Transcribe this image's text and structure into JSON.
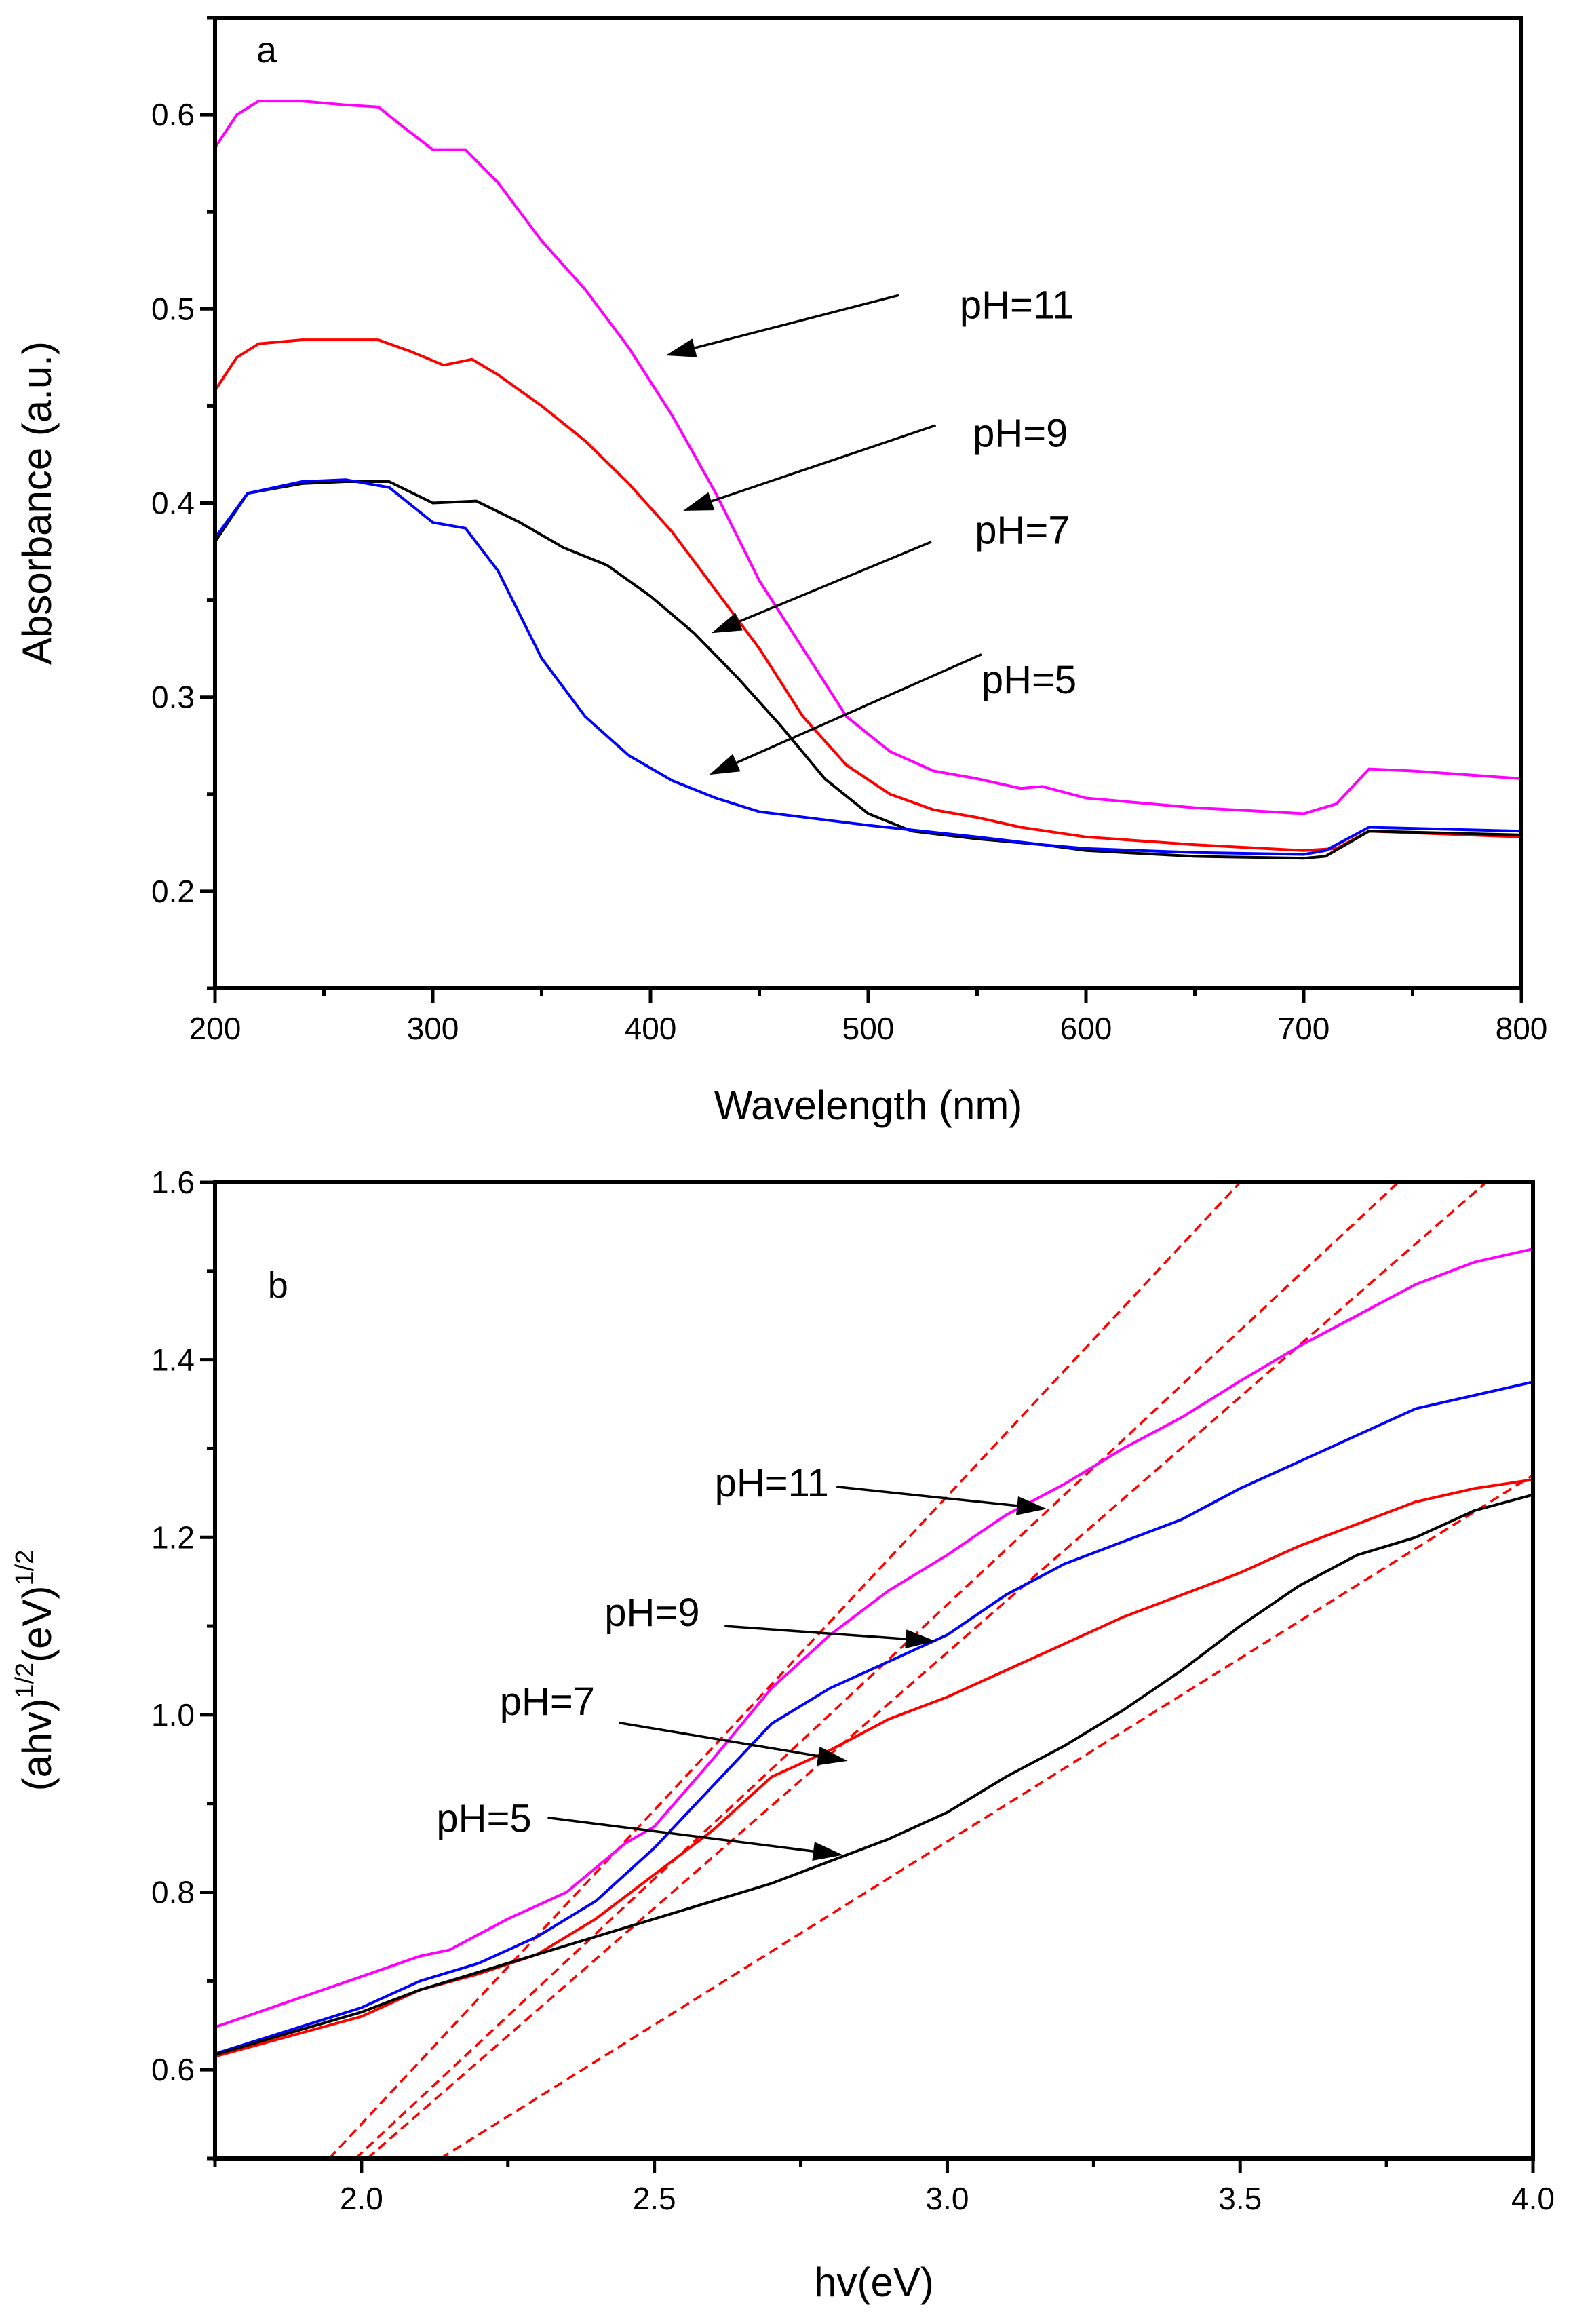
{
  "chart_data": [
    {
      "type": "line",
      "panel_label": "a",
      "xlabel": "Wavelength (nm)",
      "ylabel": "Absorbance (a.u.)",
      "xlim": [
        200,
        800
      ],
      "ylim": [
        0.15,
        0.65
      ],
      "xticks": [
        200,
        300,
        400,
        500,
        600,
        700,
        800
      ],
      "xtick_labels": [
        "200",
        "300",
        "400",
        "500",
        "600",
        "700",
        "800"
      ],
      "xminor_step": 50,
      "yticks": [
        0.2,
        0.3,
        0.4,
        0.5,
        0.6
      ],
      "ytick_labels": [
        "0.2",
        "0.3",
        "0.4",
        "0.5",
        "0.6"
      ],
      "yminor_step": 0.05,
      "series": [
        {
          "name": "pH=11",
          "color": "#ff00ff",
          "points": [
            [
              200,
              0.583
            ],
            [
              210,
              0.6
            ],
            [
              220,
              0.607
            ],
            [
              240,
              0.607
            ],
            [
              260,
              0.605
            ],
            [
              275,
              0.604
            ],
            [
              285,
              0.595
            ],
            [
              300,
              0.582
            ],
            [
              315,
              0.582
            ],
            [
              330,
              0.565
            ],
            [
              350,
              0.535
            ],
            [
              370,
              0.51
            ],
            [
              390,
              0.48
            ],
            [
              410,
              0.445
            ],
            [
              430,
              0.405
            ],
            [
              450,
              0.36
            ],
            [
              470,
              0.325
            ],
            [
              490,
              0.29
            ],
            [
              510,
              0.272
            ],
            [
              530,
              0.262
            ],
            [
              550,
              0.258
            ],
            [
              570,
              0.253
            ],
            [
              580,
              0.254
            ],
            [
              600,
              0.248
            ],
            [
              650,
              0.243
            ],
            [
              700,
              0.24
            ],
            [
              715,
              0.245
            ],
            [
              730,
              0.263
            ],
            [
              750,
              0.262
            ],
            [
              800,
              0.258
            ]
          ]
        },
        {
          "name": "pH=9",
          "color": "#ff0000",
          "points": [
            [
              200,
              0.458
            ],
            [
              210,
              0.475
            ],
            [
              220,
              0.482
            ],
            [
              240,
              0.484
            ],
            [
              275,
              0.484
            ],
            [
              290,
              0.478
            ],
            [
              305,
              0.471
            ],
            [
              318,
              0.474
            ],
            [
              330,
              0.466
            ],
            [
              350,
              0.45
            ],
            [
              370,
              0.432
            ],
            [
              390,
              0.41
            ],
            [
              410,
              0.385
            ],
            [
              430,
              0.355
            ],
            [
              450,
              0.325
            ],
            [
              470,
              0.29
            ],
            [
              490,
              0.265
            ],
            [
              510,
              0.25
            ],
            [
              530,
              0.242
            ],
            [
              550,
              0.238
            ],
            [
              570,
              0.233
            ],
            [
              600,
              0.228
            ],
            [
              650,
              0.224
            ],
            [
              700,
              0.221
            ],
            [
              715,
              0.222
            ],
            [
              730,
              0.231
            ],
            [
              800,
              0.228
            ]
          ]
        },
        {
          "name": "pH=7",
          "color": "#000000",
          "points": [
            [
              200,
              0.38
            ],
            [
              215,
              0.405
            ],
            [
              240,
              0.41
            ],
            [
              260,
              0.411
            ],
            [
              280,
              0.411
            ],
            [
              300,
              0.4
            ],
            [
              320,
              0.401
            ],
            [
              340,
              0.39
            ],
            [
              360,
              0.377
            ],
            [
              380,
              0.368
            ],
            [
              400,
              0.352
            ],
            [
              420,
              0.333
            ],
            [
              440,
              0.31
            ],
            [
              460,
              0.285
            ],
            [
              480,
              0.258
            ],
            [
              500,
              0.24
            ],
            [
              520,
              0.231
            ],
            [
              550,
              0.227
            ],
            [
              580,
              0.224
            ],
            [
              600,
              0.221
            ],
            [
              650,
              0.218
            ],
            [
              700,
              0.217
            ],
            [
              710,
              0.218
            ],
            [
              730,
              0.231
            ],
            [
              800,
              0.229
            ]
          ]
        },
        {
          "name": "pH=5",
          "color": "#0000ff",
          "points": [
            [
              200,
              0.382
            ],
            [
              215,
              0.405
            ],
            [
              240,
              0.411
            ],
            [
              260,
              0.412
            ],
            [
              280,
              0.408
            ],
            [
              300,
              0.39
            ],
            [
              315,
              0.387
            ],
            [
              330,
              0.365
            ],
            [
              350,
              0.32
            ],
            [
              370,
              0.29
            ],
            [
              390,
              0.27
            ],
            [
              410,
              0.257
            ],
            [
              430,
              0.248
            ],
            [
              450,
              0.241
            ],
            [
              500,
              0.234
            ],
            [
              550,
              0.228
            ],
            [
              580,
              0.224
            ],
            [
              600,
              0.222
            ],
            [
              650,
              0.22
            ],
            [
              700,
              0.219
            ],
            [
              710,
              0.221
            ],
            [
              730,
              0.233
            ],
            [
              800,
              0.231
            ]
          ]
        }
      ],
      "annotations": [
        {
          "text": "pH=11",
          "at": [
            542,
            0.495
          ],
          "arrow_from": [
            514,
            0.507
          ],
          "arrow_to": [
            407,
            0.476
          ]
        },
        {
          "text": "pH=9",
          "at": [
            548,
            0.429
          ],
          "arrow_from": [
            531,
            0.44
          ],
          "arrow_to": [
            415,
            0.396
          ]
        },
        {
          "text": "pH=7",
          "at": [
            549,
            0.379
          ],
          "arrow_from": [
            529,
            0.38
          ],
          "arrow_to": [
            428,
            0.333
          ]
        },
        {
          "text": "pH=5",
          "at": [
            552,
            0.302
          ],
          "arrow_from": [
            552,
            0.322
          ],
          "arrow_to": [
            427,
            0.26
          ]
        }
      ],
      "panel_label_at": [
        219,
        0.627
      ]
    },
    {
      "type": "line",
      "panel_label": "b",
      "xlabel": "hv(eV)",
      "ylabel_parts": [
        "(ahv)",
        "1/2",
        "(eV)",
        "1/2"
      ],
      "xlim": [
        1.75,
        4.0
      ],
      "ylim": [
        0.5,
        1.6
      ],
      "xticks": [
        2.0,
        2.5,
        3.0,
        3.5,
        4.0
      ],
      "xtick_labels": [
        "2.0",
        "2.5",
        "3.0",
        "3.5",
        "4.0"
      ],
      "xminor_step": 0.25,
      "yticks": [
        0.6,
        0.8,
        1.0,
        1.2,
        1.4,
        1.6
      ],
      "ytick_labels": [
        "0.6",
        "0.8",
        "1.0",
        "1.2",
        "1.4",
        "1.6"
      ],
      "yminor_step": 0.1,
      "series": [
        {
          "name": "pH=11",
          "color": "#ff00ff",
          "points": [
            [
              1.75,
              0.648
            ],
            [
              2.0,
              0.705
            ],
            [
              2.1,
              0.728
            ],
            [
              2.15,
              0.735
            ],
            [
              2.25,
              0.77
            ],
            [
              2.35,
              0.8
            ],
            [
              2.45,
              0.855
            ],
            [
              2.5,
              0.874
            ],
            [
              2.6,
              0.95
            ],
            [
              2.7,
              1.03
            ],
            [
              2.8,
              1.09
            ],
            [
              2.9,
              1.14
            ],
            [
              3.0,
              1.18
            ],
            [
              3.1,
              1.225
            ],
            [
              3.2,
              1.26
            ],
            [
              3.3,
              1.3
            ],
            [
              3.4,
              1.335
            ],
            [
              3.5,
              1.376
            ],
            [
              3.6,
              1.415
            ],
            [
              3.7,
              1.45
            ],
            [
              3.8,
              1.485
            ],
            [
              3.9,
              1.51
            ],
            [
              4.0,
              1.525
            ]
          ]
        },
        {
          "name": "pH=9",
          "color": "#0000ff",
          "points": [
            [
              1.75,
              0.618
            ],
            [
              2.0,
              0.67
            ],
            [
              2.1,
              0.7
            ],
            [
              2.2,
              0.72
            ],
            [
              2.3,
              0.75
            ],
            [
              2.4,
              0.79
            ],
            [
              2.5,
              0.85
            ],
            [
              2.6,
              0.92
            ],
            [
              2.7,
              0.99
            ],
            [
              2.8,
              1.03
            ],
            [
              2.9,
              1.06
            ],
            [
              3.0,
              1.09
            ],
            [
              3.1,
              1.135
            ],
            [
              3.2,
              1.17
            ],
            [
              3.3,
              1.195
            ],
            [
              3.4,
              1.22
            ],
            [
              3.5,
              1.255
            ],
            [
              3.6,
              1.285
            ],
            [
              3.7,
              1.315
            ],
            [
              3.8,
              1.345
            ],
            [
              3.9,
              1.36
            ],
            [
              4.0,
              1.375
            ]
          ]
        },
        {
          "name": "pH=7",
          "color": "#ff0000",
          "points": [
            [
              1.75,
              0.615
            ],
            [
              2.0,
              0.66
            ],
            [
              2.1,
              0.69
            ],
            [
              2.2,
              0.708
            ],
            [
              2.3,
              0.73
            ],
            [
              2.4,
              0.77
            ],
            [
              2.5,
              0.82
            ],
            [
              2.6,
              0.87
            ],
            [
              2.7,
              0.93
            ],
            [
              2.8,
              0.96
            ],
            [
              2.9,
              0.995
            ],
            [
              3.0,
              1.02
            ],
            [
              3.1,
              1.05
            ],
            [
              3.2,
              1.08
            ],
            [
              3.3,
              1.11
            ],
            [
              3.4,
              1.135
            ],
            [
              3.5,
              1.16
            ],
            [
              3.6,
              1.19
            ],
            [
              3.7,
              1.215
            ],
            [
              3.8,
              1.24
            ],
            [
              3.9,
              1.255
            ],
            [
              4.0,
              1.265
            ]
          ]
        },
        {
          "name": "pH=5",
          "color": "#000000",
          "points": [
            [
              1.75,
              0.617
            ],
            [
              2.0,
              0.665
            ],
            [
              2.1,
              0.69
            ],
            [
              2.2,
              0.71
            ],
            [
              2.3,
              0.73
            ],
            [
              2.4,
              0.75
            ],
            [
              2.5,
              0.77
            ],
            [
              2.6,
              0.79
            ],
            [
              2.7,
              0.81
            ],
            [
              2.8,
              0.835
            ],
            [
              2.9,
              0.86
            ],
            [
              3.0,
              0.89
            ],
            [
              3.1,
              0.93
            ],
            [
              3.2,
              0.965
            ],
            [
              3.3,
              1.005
            ],
            [
              3.4,
              1.05
            ],
            [
              3.5,
              1.1
            ],
            [
              3.6,
              1.145
            ],
            [
              3.7,
              1.18
            ],
            [
              3.8,
              1.2
            ],
            [
              3.9,
              1.23
            ],
            [
              4.0,
              1.248
            ]
          ]
        }
      ],
      "tangent_lines": {
        "color": "#ff0000",
        "style": "dashed",
        "lines": [
          [
            [
              1.945,
              0.5
            ],
            [
              3.5,
              1.6
            ]
          ],
          [
            [
              1.99,
              0.5
            ],
            [
              3.77,
              1.6
            ]
          ],
          [
            [
              2.01,
              0.5
            ],
            [
              3.92,
              1.6
            ]
          ],
          [
            [
              2.135,
              0.5
            ],
            [
              4.0,
              1.27
            ]
          ]
        ]
      },
      "annotations": [
        {
          "text": "pH=11",
          "at": [
            2.603,
            1.246
          ],
          "arrow_from": [
            2.811,
            1.257
          ],
          "arrow_to": [
            3.17,
            1.232
          ]
        },
        {
          "text": "pH=9",
          "at": [
            2.415,
            1.1
          ],
          "arrow_from": [
            2.62,
            1.1
          ],
          "arrow_to": [
            2.98,
            1.083
          ]
        },
        {
          "text": "pH=7",
          "at": [
            2.236,
            1.0
          ],
          "arrow_from": [
            2.44,
            0.991
          ],
          "arrow_to": [
            2.83,
            0.948
          ]
        },
        {
          "text": "pH=5",
          "at": [
            2.128,
            0.868
          ],
          "arrow_from": [
            2.318,
            0.884
          ],
          "arrow_to": [
            2.822,
            0.842
          ]
        }
      ],
      "panel_label_at": [
        1.84,
        1.47
      ]
    }
  ]
}
